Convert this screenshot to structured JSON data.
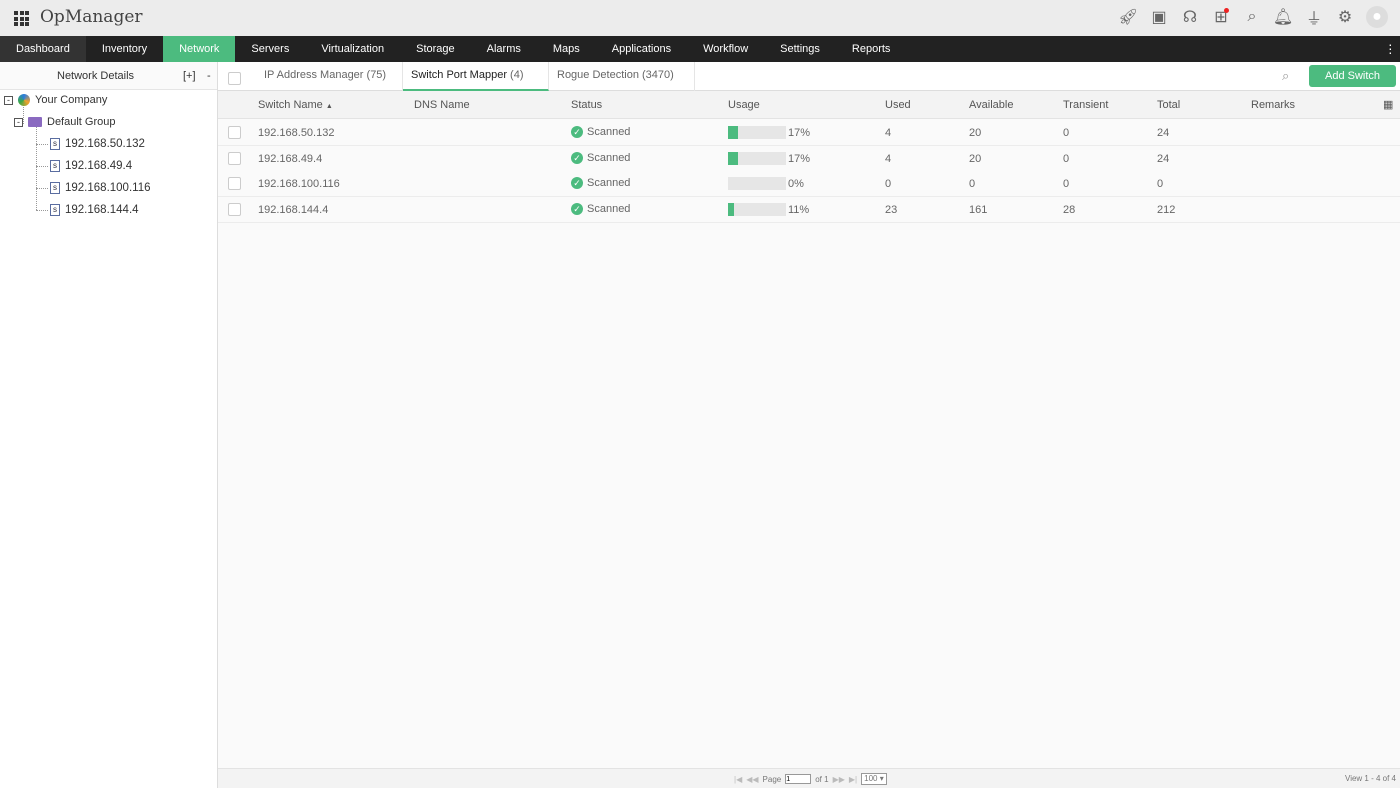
{
  "app": {
    "title": "OpManager"
  },
  "top_icons": [
    "rocket-icon",
    "presentation-icon",
    "headset-icon",
    "gift-icon",
    "search-icon",
    "bell-icon",
    "plug-icon",
    "gear-icon",
    "user-avatar-icon"
  ],
  "nav": [
    "Dashboard",
    "Inventory",
    "Network",
    "Servers",
    "Virtualization",
    "Storage",
    "Alarms",
    "Maps",
    "Applications",
    "Workflow",
    "Settings",
    "Reports"
  ],
  "nav_active": "Network",
  "sidebar": {
    "title": "Network Details",
    "expand": "[+]",
    "collapse": "-",
    "root": "Your Company",
    "group": "Default Group",
    "devices": [
      "192.168.50.132",
      "192.168.49.4",
      "192.168.100.116",
      "192.168.144.4"
    ]
  },
  "tabs": [
    {
      "label": "IP Address Manager",
      "count": "(75)"
    },
    {
      "label": "Switch Port Mapper",
      "count": "(4)"
    },
    {
      "label": "Rogue Detection",
      "count": "(3470)"
    }
  ],
  "add_switch": "Add Switch",
  "columns": [
    "Switch Name",
    "DNS Name",
    "Status",
    "Usage",
    "Used",
    "Available",
    "Transient",
    "Total",
    "Remarks"
  ],
  "sort_indicator": "▲",
  "rows": [
    {
      "name": "192.168.50.132",
      "dns": "",
      "status": "Scanned",
      "usage": "17%",
      "usage_pct": 17,
      "used": "4",
      "available": "20",
      "transient": "0",
      "total": "24",
      "remarks": ""
    },
    {
      "name": "192.168.49.4",
      "dns": "",
      "status": "Scanned",
      "usage": "17%",
      "usage_pct": 17,
      "used": "4",
      "available": "20",
      "transient": "0",
      "total": "24",
      "remarks": ""
    },
    {
      "name": "192.168.100.116",
      "dns": "",
      "status": "Scanned",
      "usage": "0%",
      "usage_pct": 0,
      "used": "0",
      "available": "0",
      "transient": "0",
      "total": "0",
      "remarks": ""
    },
    {
      "name": "192.168.144.4",
      "dns": "",
      "status": "Scanned",
      "usage": "11%",
      "usage_pct": 11,
      "used": "23",
      "available": "161",
      "transient": "28",
      "total": "212",
      "remarks": ""
    }
  ],
  "footer": {
    "page_label": "Page",
    "page": "1",
    "of": "of 1",
    "page_size": "100",
    "view": "View 1 - 4 of 4"
  },
  "colors": {
    "accent": "#4cbb7f",
    "nav_bg": "#222222"
  }
}
